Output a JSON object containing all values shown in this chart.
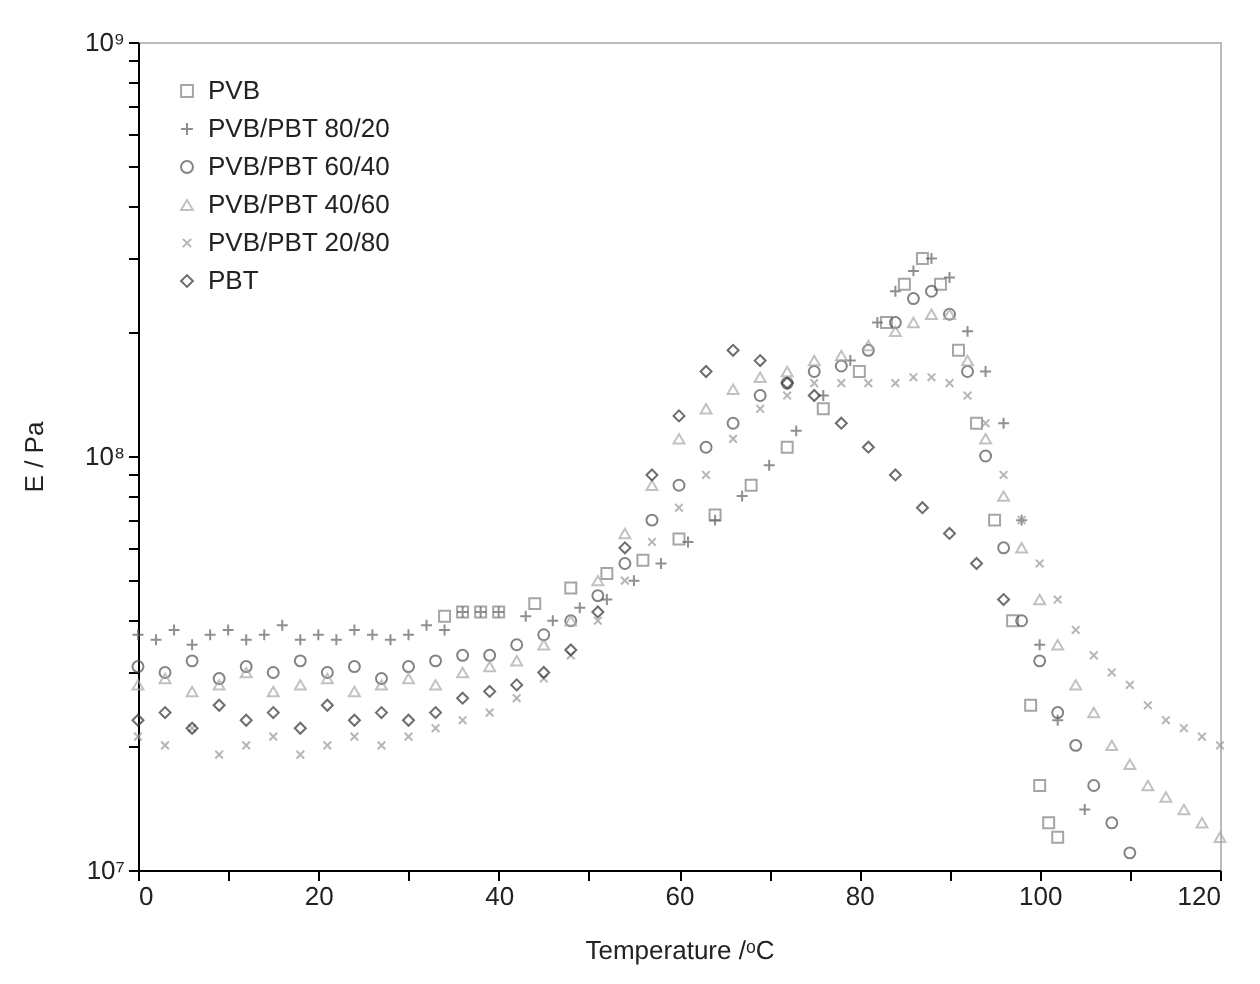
{
  "chart_data": {
    "type": "scatter",
    "xlabel": "Temperature /ᵒC",
    "ylabel": "E / Pa",
    "log": "y",
    "grid": false,
    "legend": "top left",
    "xlim": [
      0,
      120
    ],
    "xticks": [
      0,
      {
        "value": 10,
        "label": null
      },
      20,
      {
        "value": 30,
        "label": null
      },
      40,
      {
        "value": 50,
        "label": null
      },
      60,
      {
        "value": 70,
        "label": null
      },
      80,
      {
        "value": 90,
        "label": null
      },
      100,
      {
        "value": 110,
        "label": null
      },
      120
    ],
    "ylim": [
      10000000,
      1000000000
    ],
    "yticks": [
      {
        "value": 10000000,
        "label": "10⁷"
      },
      {
        "value": 20000000,
        "label": null
      },
      {
        "value": 30000000,
        "label": null
      },
      {
        "value": 40000000,
        "label": null
      },
      {
        "value": 50000000,
        "label": null
      },
      {
        "value": 60000000,
        "label": null
      },
      {
        "value": 70000000,
        "label": null
      },
      {
        "value": 80000000,
        "label": null
      },
      {
        "value": 90000000,
        "label": null
      },
      {
        "value": 100000000,
        "label": "10⁸"
      },
      {
        "value": 200000000,
        "label": null
      },
      {
        "value": 300000000,
        "label": null
      },
      {
        "value": 400000000,
        "label": null
      },
      {
        "value": 500000000,
        "label": null
      },
      {
        "value": 600000000,
        "label": null
      },
      {
        "value": 700000000,
        "label": null
      },
      {
        "value": 800000000,
        "label": null
      },
      {
        "value": 900000000,
        "label": null
      },
      {
        "value": 1000000000,
        "label": "10⁹"
      }
    ],
    "series": [
      {
        "name": "PVB",
        "color": "#808080",
        "marker": "square",
        "x": [
          34,
          36,
          38,
          40,
          44,
          48,
          52,
          56,
          60,
          64,
          68,
          72,
          76,
          80,
          83,
          85,
          87,
          89,
          91,
          93,
          95,
          97,
          99,
          100,
          101,
          102
        ],
        "values": [
          41000000.0,
          42000000.0,
          42000000.0,
          42000000.0,
          44000000.0,
          48000000.0,
          52000000.0,
          56000000.0,
          63000000.0,
          72000000.0,
          85000000.0,
          105000000.0,
          130000000.0,
          160000000.0,
          210000000.0,
          260000000.0,
          300000000.0,
          260000000.0,
          180000000.0,
          120000000.0,
          70000000.0,
          40000000.0,
          25000000.0,
          16000000.0,
          13000000.0,
          12000000.0
        ]
      },
      {
        "name": "PVB/PBT 80/20",
        "color": "#606060",
        "marker": "cross",
        "x": [
          0,
          2,
          4,
          6,
          8,
          10,
          12,
          14,
          16,
          18,
          20,
          22,
          24,
          26,
          28,
          30,
          32,
          34,
          36,
          38,
          40,
          43,
          46,
          49,
          52,
          55,
          58,
          61,
          64,
          67,
          70,
          73,
          76,
          79,
          82,
          84,
          86,
          88,
          90,
          92,
          94,
          96,
          98,
          100,
          102,
          105
        ],
        "values": [
          37000000.0,
          36000000.0,
          38000000.0,
          35000000.0,
          37000000.0,
          38000000.0,
          36000000.0,
          37000000.0,
          39000000.0,
          36000000.0,
          37000000.0,
          36000000.0,
          38000000.0,
          37000000.0,
          36000000.0,
          37000000.0,
          39000000.0,
          38000000.0,
          42000000.0,
          42000000.0,
          42000000.0,
          41000000.0,
          40000000.0,
          43000000.0,
          45000000.0,
          50000000.0,
          55000000.0,
          62000000.0,
          70000000.0,
          80000000.0,
          95000000.0,
          115000000.0,
          140000000.0,
          170000000.0,
          210000000.0,
          250000000.0,
          280000000.0,
          300000000.0,
          270000000.0,
          200000000.0,
          160000000.0,
          120000000.0,
          70000000.0,
          35000000.0,
          23000000.0,
          14000000.0
        ]
      },
      {
        "name": "PVB/PBT 60/40",
        "color": "#505050",
        "marker": "circle",
        "x": [
          0,
          3,
          6,
          9,
          12,
          15,
          18,
          21,
          24,
          27,
          30,
          33,
          36,
          39,
          42,
          45,
          48,
          51,
          54,
          57,
          60,
          63,
          66,
          69,
          72,
          75,
          78,
          81,
          84,
          86,
          88,
          90,
          92,
          94,
          96,
          98,
          100,
          102,
          104,
          106,
          108,
          110
        ],
        "values": [
          31000000.0,
          30000000.0,
          32000000.0,
          29000000.0,
          31000000.0,
          30000000.0,
          32000000.0,
          30000000.0,
          31000000.0,
          29000000.0,
          31000000.0,
          32000000.0,
          33000000.0,
          33000000.0,
          35000000.0,
          37000000.0,
          40000000.0,
          46000000.0,
          55000000.0,
          70000000.0,
          85000000.0,
          105000000.0,
          120000000.0,
          140000000.0,
          150000000.0,
          160000000.0,
          165000000.0,
          180000000.0,
          210000000.0,
          240000000.0,
          250000000.0,
          220000000.0,
          160000000.0,
          100000000.0,
          60000000.0,
          40000000.0,
          32000000.0,
          24000000.0,
          20000000.0,
          16000000.0,
          13000000.0,
          11000000.0
        ]
      },
      {
        "name": "PVB/PBT 40/60",
        "color": "#a8a8a8",
        "marker": "triangle",
        "x": [
          0,
          3,
          6,
          9,
          12,
          15,
          18,
          21,
          24,
          27,
          30,
          33,
          36,
          39,
          42,
          45,
          48,
          51,
          54,
          57,
          60,
          63,
          66,
          69,
          72,
          75,
          78,
          81,
          84,
          86,
          88,
          90,
          92,
          94,
          96,
          98,
          100,
          102,
          104,
          106,
          108,
          110,
          112,
          114,
          116,
          118,
          120
        ],
        "values": [
          28000000.0,
          29000000.0,
          27000000.0,
          28000000.0,
          30000000.0,
          27000000.0,
          28000000.0,
          29000000.0,
          27000000.0,
          28000000.0,
          29000000.0,
          28000000.0,
          30000000.0,
          31000000.0,
          32000000.0,
          35000000.0,
          40000000.0,
          50000000.0,
          65000000.0,
          85000000.0,
          110000000.0,
          130000000.0,
          145000000.0,
          155000000.0,
          160000000.0,
          170000000.0,
          175000000.0,
          185000000.0,
          200000000.0,
          210000000.0,
          220000000.0,
          220000000.0,
          170000000.0,
          110000000.0,
          80000000.0,
          60000000.0,
          45000000.0,
          35000000.0,
          28000000.0,
          24000000.0,
          20000000.0,
          18000000.0,
          16000000.0,
          15000000.0,
          14000000.0,
          13000000.0,
          12000000.0
        ]
      },
      {
        "name": "PVB/PBT 20/80",
        "color": "#989898",
        "marker": "x",
        "x": [
          0,
          3,
          6,
          9,
          12,
          15,
          18,
          21,
          24,
          27,
          30,
          33,
          36,
          39,
          42,
          45,
          48,
          51,
          54,
          57,
          60,
          63,
          66,
          69,
          72,
          75,
          78,
          81,
          84,
          86,
          88,
          90,
          92,
          94,
          96,
          98,
          100,
          102,
          104,
          106,
          108,
          110,
          112,
          114,
          116,
          118,
          120
        ],
        "values": [
          21000000.0,
          20000000.0,
          22000000.0,
          19000000.0,
          20000000.0,
          21000000.0,
          19000000.0,
          20000000.0,
          21000000.0,
          20000000.0,
          21000000.0,
          22000000.0,
          23000000.0,
          24000000.0,
          26000000.0,
          29000000.0,
          33000000.0,
          40000000.0,
          50000000.0,
          62000000.0,
          75000000.0,
          90000000.0,
          110000000.0,
          130000000.0,
          140000000.0,
          150000000.0,
          150000000.0,
          150000000.0,
          150000000.0,
          155000000.0,
          155000000.0,
          150000000.0,
          140000000.0,
          120000000.0,
          90000000.0,
          70000000.0,
          55000000.0,
          45000000.0,
          38000000.0,
          33000000.0,
          30000000.0,
          28000000.0,
          25000000.0,
          23000000.0,
          22000000.0,
          21000000.0,
          20000000.0
        ]
      },
      {
        "name": "PBT",
        "color": "#303030",
        "marker": "diamond",
        "x": [
          0,
          3,
          6,
          9,
          12,
          15,
          18,
          21,
          24,
          27,
          30,
          33,
          36,
          39,
          42,
          45,
          48,
          51,
          54,
          57,
          60,
          63,
          66,
          69,
          72,
          75,
          78,
          81,
          84,
          87,
          90,
          93,
          96
        ],
        "values": [
          23000000.0,
          24000000.0,
          22000000.0,
          25000000.0,
          23000000.0,
          24000000.0,
          22000000.0,
          25000000.0,
          23000000.0,
          24000000.0,
          23000000.0,
          24000000.0,
          26000000.0,
          27000000.0,
          28000000.0,
          30000000.0,
          34000000.0,
          42000000.0,
          60000000.0,
          90000000.0,
          125000000.0,
          160000000.0,
          180000000.0,
          170000000.0,
          150000000.0,
          140000000.0,
          120000000.0,
          105000000.0,
          90000000.0,
          75000000.0,
          65000000.0,
          55000000.0,
          45000000.0
        ]
      }
    ]
  }
}
